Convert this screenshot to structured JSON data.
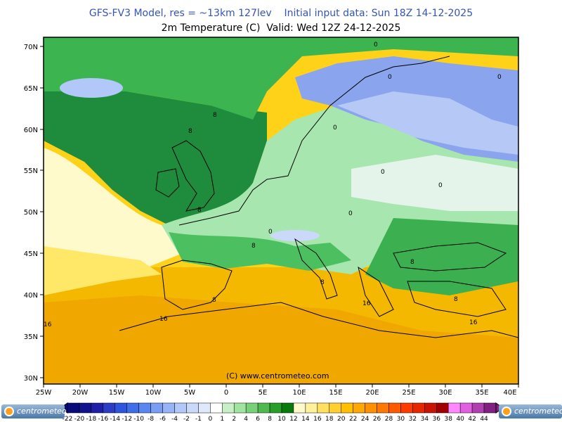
{
  "header": {
    "line1": "GFS-FV3 Model, res = ~13km 127lev    Initial input data: Sun 18Z 14-12-2025",
    "line2": "2m Temperature (C)  Valid: Wed 12Z 24-12-2025"
  },
  "axes": {
    "lat_labels": [
      "70N",
      "65N",
      "60N",
      "55N",
      "50N",
      "45N",
      "40N",
      "35N",
      "30N"
    ],
    "lon_labels": [
      "25W",
      "20W",
      "15W",
      "10W",
      "5W",
      "0",
      "5E",
      "10E",
      "15E",
      "20E",
      "25E",
      "30E",
      "35E",
      "40E"
    ]
  },
  "contour_labels": [
    "0",
    "0",
    "0",
    "0",
    "0",
    "0",
    "0",
    "0",
    "8",
    "8",
    "8",
    "8",
    "8",
    "8",
    "8",
    "8",
    "16",
    "16",
    "16",
    "16"
  ],
  "watermark": "(C) www.centrometeo.com",
  "logo_text": "centrometeo",
  "legend": {
    "labels": [
      "-22",
      "-20",
      "-18",
      "-16",
      "-14",
      "-12",
      "-10",
      "-8",
      "-6",
      "-4",
      "-2",
      "-1",
      "0",
      "1",
      "2",
      "4",
      "6",
      "8",
      "10",
      "12",
      "14",
      "16",
      "18",
      "20",
      "22",
      "24",
      "26",
      "28",
      "30",
      "32",
      "34",
      "36",
      "38",
      "40",
      "42",
      "44"
    ],
    "colors": [
      "#0a0a7a",
      "#12128f",
      "#1e1ea8",
      "#2a3dc4",
      "#2f55dc",
      "#3f6ee8",
      "#5a86f0",
      "#7a9ef4",
      "#97b4f6",
      "#b2c8f8",
      "#cad8fa",
      "#e0e8fc",
      "#ffffff",
      "#c8f0c8",
      "#a0e4a0",
      "#78d078",
      "#50b850",
      "#289f28",
      "#0a7a0a",
      "#fffacc",
      "#fff09a",
      "#ffe060",
      "#ffd030",
      "#ffc000",
      "#ffa800",
      "#ff9000",
      "#ff7800",
      "#ff5a00",
      "#ff3c00",
      "#e62800",
      "#c81400",
      "#a00000",
      "#ff88ff",
      "#e060e0",
      "#b040b0",
      "#802080"
    ]
  },
  "colors": {
    "title_blue": "#3355bb",
    "sea_dark_green": "#1e8c3c",
    "land_light_green": "#a8e6b0",
    "warm_yellow": "#ffd700",
    "cold_blue": "#7090e8"
  }
}
